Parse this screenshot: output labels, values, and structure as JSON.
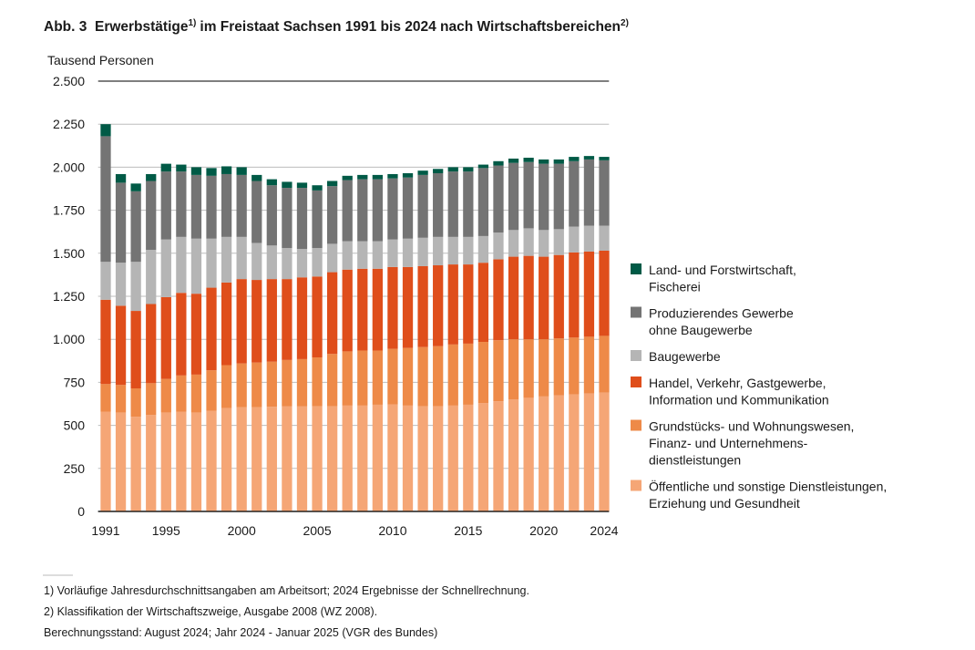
{
  "chart_data": {
    "type": "stacked_bar",
    "title": "Abb. 3  Erwerbstätige",
    "title_note": "1)",
    "title_rest": "im Freistaat Sachsen 1991 bis 2024 nach Wirtschaftsbereichen",
    "title_rest_note": "2)",
    "y_axis_label": "Tausend Personen",
    "categories": [
      "1991",
      null,
      null,
      null,
      "1995",
      null,
      null,
      null,
      null,
      "2000",
      null,
      null,
      null,
      null,
      "2005",
      null,
      null,
      null,
      null,
      "2010",
      null,
      null,
      null,
      null,
      "2015",
      null,
      null,
      null,
      null,
      "2020",
      null,
      null,
      null,
      "2024"
    ],
    "ylim": [
      0,
      2500
    ],
    "yticks": [
      0,
      250,
      500,
      750,
      {
        "value": 1000,
        "label": "1.000"
      },
      {
        "value": 1250,
        "label": "1.250"
      },
      {
        "value": 1500,
        "label": "1.500"
      },
      {
        "value": 1750,
        "label": "1.750"
      },
      {
        "value": 2000,
        "label": "2.000"
      },
      {
        "value": 2250,
        "label": "2.250"
      },
      {
        "value": 2500,
        "label": "2.500"
      }
    ],
    "grid": true,
    "legend": "right",
    "series": [
      {
        "name": "Öffentliche und sonstige Dienstleistungen,\nErziehung und Gesundheit",
        "color": "#f5a676",
        "values": [
          580,
          575,
          550,
          560,
          575,
          580,
          575,
          585,
          600,
          605,
          605,
          608,
          610,
          610,
          612,
          612,
          615,
          615,
          620,
          622,
          615,
          612,
          612,
          615,
          620,
          630,
          640,
          650,
          660,
          668,
          675,
          680,
          685,
          690
        ]
      },
      {
        "name": "Grundstücks- und Wohnungswesen,\nFinanz- und Unternehmens-\ndienstleistungen",
        "color": "#ee8a48",
        "values": [
          160,
          160,
          165,
          185,
          195,
          210,
          220,
          235,
          250,
          255,
          260,
          262,
          270,
          275,
          283,
          303,
          315,
          320,
          315,
          323,
          335,
          343,
          348,
          355,
          355,
          355,
          355,
          350,
          340,
          332,
          330,
          330,
          330,
          330
        ]
      },
      {
        "name": "Handel, Verkehr, Gastgewerbe,\nInformation und Kommunikation",
        "color": "#df4e1b",
        "values": [
          490,
          460,
          450,
          460,
          475,
          480,
          470,
          480,
          480,
          490,
          480,
          480,
          470,
          475,
          470,
          475,
          475,
          475,
          475,
          475,
          470,
          470,
          470,
          465,
          460,
          460,
          470,
          480,
          485,
          480,
          485,
          495,
          495,
          495
        ]
      },
      {
        "name": "Baugewerbe",
        "color": "#b5b5b5",
        "values": [
          220,
          250,
          285,
          315,
          335,
          325,
          320,
          285,
          265,
          245,
          215,
          195,
          180,
          165,
          165,
          165,
          165,
          160,
          160,
          160,
          165,
          165,
          165,
          160,
          160,
          155,
          155,
          155,
          160,
          155,
          150,
          150,
          150,
          145
        ]
      },
      {
        "name": "Produzierendes Gewerbe\nohne Baugewerbe",
        "color": "#747474",
        "values": [
          730,
          465,
          410,
          400,
          395,
          380,
          370,
          365,
          365,
          360,
          360,
          350,
          350,
          355,
          335,
          335,
          355,
          360,
          360,
          355,
          355,
          365,
          370,
          380,
          380,
          395,
          390,
          390,
          385,
          385,
          380,
          380,
          385,
          380
        ]
      },
      {
        "name": "Land- und Forstwirtschaft,\nFischerei",
        "color": "#005a46",
        "values": [
          70,
          50,
          45,
          40,
          45,
          40,
          45,
          45,
          45,
          45,
          35,
          35,
          35,
          30,
          30,
          30,
          25,
          25,
          25,
          25,
          25,
          25,
          25,
          25,
          25,
          20,
          25,
          25,
          25,
          25,
          25,
          25,
          20,
          20
        ]
      }
    ]
  },
  "footnotes": [
    "1) Vorläufige Jahresdurchschnittsangaben am Arbeitsort; 2024 Ergebnisse der Schnellrechnung.",
    "2) Klassifikation der Wirtschaftszweige, Ausgabe 2008 (WZ 2008).",
    "Berechnungsstand: August 2024; Jahr 2024 - Januar 2025 (VGR des Bundes)"
  ]
}
